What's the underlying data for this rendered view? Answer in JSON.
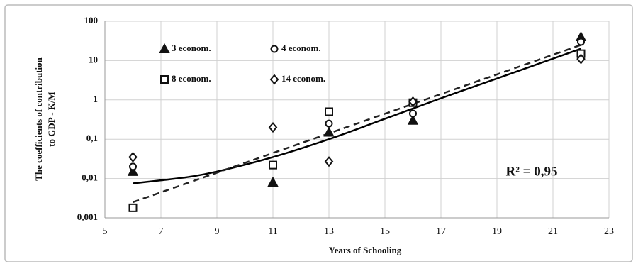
{
  "chart_data": {
    "type": "scatter",
    "xlabel": "Years of  Schooling",
    "ylabel": [
      "The coefficients of contribution",
      "to GDP - K/M"
    ],
    "annotation": "R² = 0,95",
    "xlim": [
      5,
      23
    ],
    "xticks": [
      5,
      7,
      9,
      11,
      13,
      15,
      17,
      19,
      21,
      23
    ],
    "ylim": [
      0.001,
      100
    ],
    "log_y": true,
    "yticks": [
      {
        "value": 0.001,
        "label": "0,001"
      },
      {
        "value": 0.01,
        "label": "0,01"
      },
      {
        "value": 0.1,
        "label": "0,1"
      },
      1,
      10,
      100
    ],
    "grid": true,
    "legend": "upper left",
    "series": [
      {
        "name": "3 econom.",
        "color": "#111111",
        "marker": "triangle",
        "filled": true,
        "x": [
          6,
          11,
          13,
          16,
          22
        ],
        "values": [
          0.015,
          0.008,
          0.15,
          0.3,
          40
        ]
      },
      {
        "name": "4 econom.",
        "color": "#111111",
        "marker": "circle",
        "filled": false,
        "x": [
          6,
          11,
          13,
          16,
          22
        ],
        "values": [
          0.02,
          0.022,
          0.25,
          0.45,
          30
        ]
      },
      {
        "name": "8 econom.",
        "color": "#111111",
        "marker": "square",
        "filled": false,
        "x": [
          6,
          11,
          13,
          16,
          22
        ],
        "values": [
          0.0018,
          0.022,
          0.5,
          0.85,
          15
        ]
      },
      {
        "name": "14 econom.",
        "color": "#111111",
        "marker": "diamond",
        "filled": false,
        "x": [
          6,
          11,
          13,
          16,
          22
        ],
        "values": [
          0.035,
          0.2,
          0.027,
          0.9,
          11
        ]
      }
    ],
    "trend_lines": [
      {
        "style": "solid",
        "color": "#000000",
        "x": [
          6,
          7,
          8,
          9,
          11,
          13,
          15,
          17,
          19,
          22
        ],
        "values": [
          0.0075,
          0.009,
          0.011,
          0.015,
          0.035,
          0.1,
          0.33,
          1.1,
          3.5,
          20
        ]
      },
      {
        "style": "dashed",
        "color": "#222222",
        "x": [
          6,
          22
        ],
        "values": [
          0.0025,
          25
        ]
      }
    ]
  }
}
